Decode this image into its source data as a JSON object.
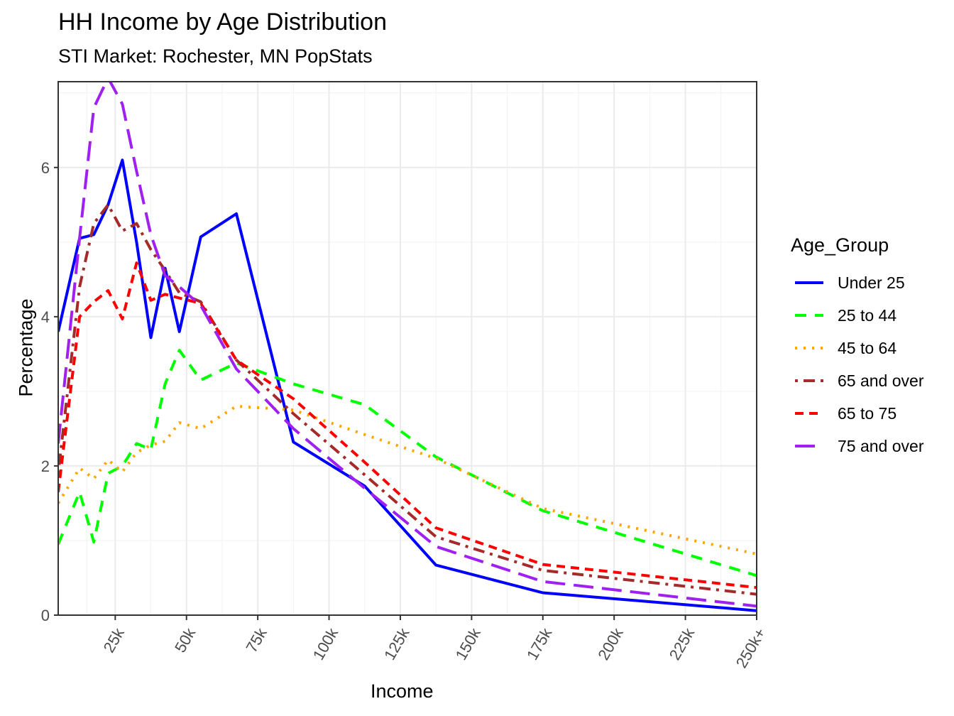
{
  "title": "HH Income by Age Distribution",
  "subtitle": "STI Market: Rochester, MN PopStats",
  "chart_data": {
    "type": "line",
    "title": "HH Income by Age Distribution",
    "subtitle": "STI Market: Rochester, MN PopStats",
    "xlabel": "Income",
    "ylabel": "Percentage",
    "x_units": "thousands USD (bracket midpoints)",
    "x": [
      5,
      12.5,
      17.5,
      22.5,
      27.5,
      32.5,
      37.5,
      42.5,
      47.5,
      55,
      67.5,
      87.5,
      112.5,
      137.5,
      175,
      250
    ],
    "xlim": [
      5,
      250
    ],
    "ylim": [
      0,
      7.15
    ],
    "x_ticks": [
      25,
      50,
      75,
      100,
      125,
      150,
      175,
      200,
      225,
      250
    ],
    "x_tick_labels": [
      "25k",
      "50k",
      "75k",
      "100k",
      "125k",
      "150k",
      "175k",
      "200k",
      "225k",
      "250k+"
    ],
    "y_ticks": [
      0,
      2,
      4,
      6
    ],
    "y_tick_labels": [
      "0",
      "2",
      "4",
      "6"
    ],
    "grid": true,
    "legend_title": "Age_Group",
    "legend_position": "right",
    "series": [
      {
        "name": "Under 25",
        "color": "#0000FF",
        "dash": "solid",
        "values": [
          3.8,
          5.05,
          5.1,
          5.5,
          6.1,
          5.0,
          3.72,
          4.65,
          3.8,
          5.07,
          5.38,
          2.32,
          1.73,
          0.67,
          0.3,
          0.06
        ]
      },
      {
        "name": "25 to 44",
        "color": "#00FF00",
        "dash": "dashed",
        "values": [
          0.95,
          1.65,
          0.98,
          1.9,
          2.0,
          2.3,
          2.22,
          3.1,
          3.55,
          3.15,
          3.38,
          3.1,
          2.82,
          2.12,
          1.4,
          0.53
        ]
      },
      {
        "name": "45 to 64",
        "color": "#FFA500",
        "dash": "dotted",
        "values": [
          1.5,
          1.97,
          1.83,
          2.08,
          1.92,
          2.18,
          2.28,
          2.33,
          2.58,
          2.5,
          2.8,
          2.75,
          2.42,
          2.1,
          1.43,
          0.82
        ]
      },
      {
        "name": "65 and over",
        "color": "#A52A2A",
        "dash": "dotdash",
        "values": [
          1.9,
          4.4,
          5.25,
          5.5,
          5.15,
          5.25,
          4.9,
          4.62,
          4.32,
          4.2,
          3.42,
          2.7,
          1.88,
          1.05,
          0.6,
          0.28
        ]
      },
      {
        "name": "65 to 75",
        "color": "#FF0000",
        "dash": "shortdash",
        "values": [
          1.65,
          4.0,
          4.2,
          4.35,
          3.97,
          4.72,
          4.22,
          4.3,
          4.25,
          4.18,
          3.42,
          2.9,
          2.05,
          1.17,
          0.68,
          0.37
        ]
      },
      {
        "name": "75 and over",
        "color": "#A020F0",
        "dash": "longdash",
        "values": [
          2.3,
          5.05,
          6.8,
          7.2,
          6.85,
          5.95,
          5.1,
          4.55,
          4.4,
          4.15,
          3.3,
          2.5,
          1.7,
          0.92,
          0.45,
          0.12
        ]
      }
    ]
  },
  "legend": {
    "title": "Age_Group",
    "items": [
      "Under 25",
      "25 to 44",
      "45 to 64",
      "65 and over",
      "65 to 75",
      "75 and over"
    ]
  },
  "axes": {
    "x_title": "Income",
    "y_title": "Percentage"
  }
}
